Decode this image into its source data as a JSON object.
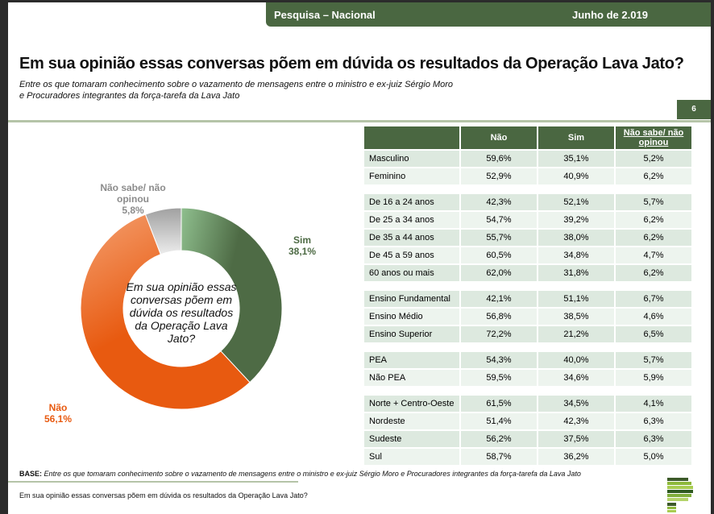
{
  "header": {
    "left": "Pesquisa – Nacional",
    "right": "Junho de 2.019"
  },
  "title": "Em sua opinião essas conversas põem em dúvida os resultados da Operação Lava Jato?",
  "subtitle_line1": "Entre os que tomaram conhecimento sobre o vazamento de mensagens entre o ministro e ex-juiz Sérgio Moro",
  "subtitle_line2": "e Procuradores integrantes da força-tarefa da Lava Jato",
  "page_number": "6",
  "chart_data": {
    "type": "pie",
    "title": "Em sua opinião essas conversas põem em dúvida os resultados da Operação Lava Jato?",
    "categories": [
      "Sim",
      "Não",
      "Não sabe/ não opinou"
    ],
    "values": [
      38.1,
      56.1,
      5.8
    ],
    "labels": [
      "38,1%",
      "56,1%",
      "5,8%"
    ],
    "colors": [
      "#4e6b45",
      "#e85a10",
      "#b0b0b0"
    ],
    "label_names": {
      "sim": "Sim",
      "nao": "Não",
      "ns_1": "Não sabe/ não",
      "ns_2": "opinou"
    }
  },
  "table": {
    "headers": [
      "",
      "Não",
      "Sim",
      "Não sabe/ não opinou"
    ],
    "groups": [
      [
        [
          "Masculino",
          "59,6%",
          "35,1%",
          "5,2%"
        ],
        [
          "Feminino",
          "52,9%",
          "40,9%",
          "6,2%"
        ]
      ],
      [
        [
          "De 16 a 24 anos",
          "42,3%",
          "52,1%",
          "5,7%"
        ],
        [
          "De 25 a 34 anos",
          "54,7%",
          "39,2%",
          "6,2%"
        ],
        [
          "De 35 a 44 anos",
          "55,7%",
          "38,0%",
          "6,2%"
        ],
        [
          "De 45 a 59 anos",
          "60,5%",
          "34,8%",
          "4,7%"
        ],
        [
          "60 anos ou mais",
          "62,0%",
          "31,8%",
          "6,2%"
        ]
      ],
      [
        [
          "Ensino Fundamental",
          "42,1%",
          "51,1%",
          "6,7%"
        ],
        [
          "Ensino Médio",
          "56,8%",
          "38,5%",
          "4,6%"
        ],
        [
          "Ensino Superior",
          "72,2%",
          "21,2%",
          "6,5%"
        ]
      ],
      [
        [
          "PEA",
          "54,3%",
          "40,0%",
          "5,7%"
        ],
        [
          "Não PEA",
          "59,5%",
          "34,6%",
          "5,9%"
        ]
      ],
      [
        [
          "Norte + Centro-Oeste",
          "61,5%",
          "34,5%",
          "4,1%"
        ],
        [
          "Nordeste",
          "51,4%",
          "42,3%",
          "6,3%"
        ],
        [
          "Sudeste",
          "56,2%",
          "37,5%",
          "6,3%"
        ],
        [
          "Sul",
          "58,7%",
          "36,2%",
          "5,0%"
        ]
      ]
    ]
  },
  "base_label": "BASE:",
  "base_text": "Entre os que tomaram conhecimento sobre o vazamento de mensagens entre o ministro e ex-juiz Sérgio Moro e Procuradores integrantes da força-tarefa da Lava Jato",
  "footer": "Em sua opinião essas conversas põem em dúvida os resultados da Operação Lava Jato?"
}
